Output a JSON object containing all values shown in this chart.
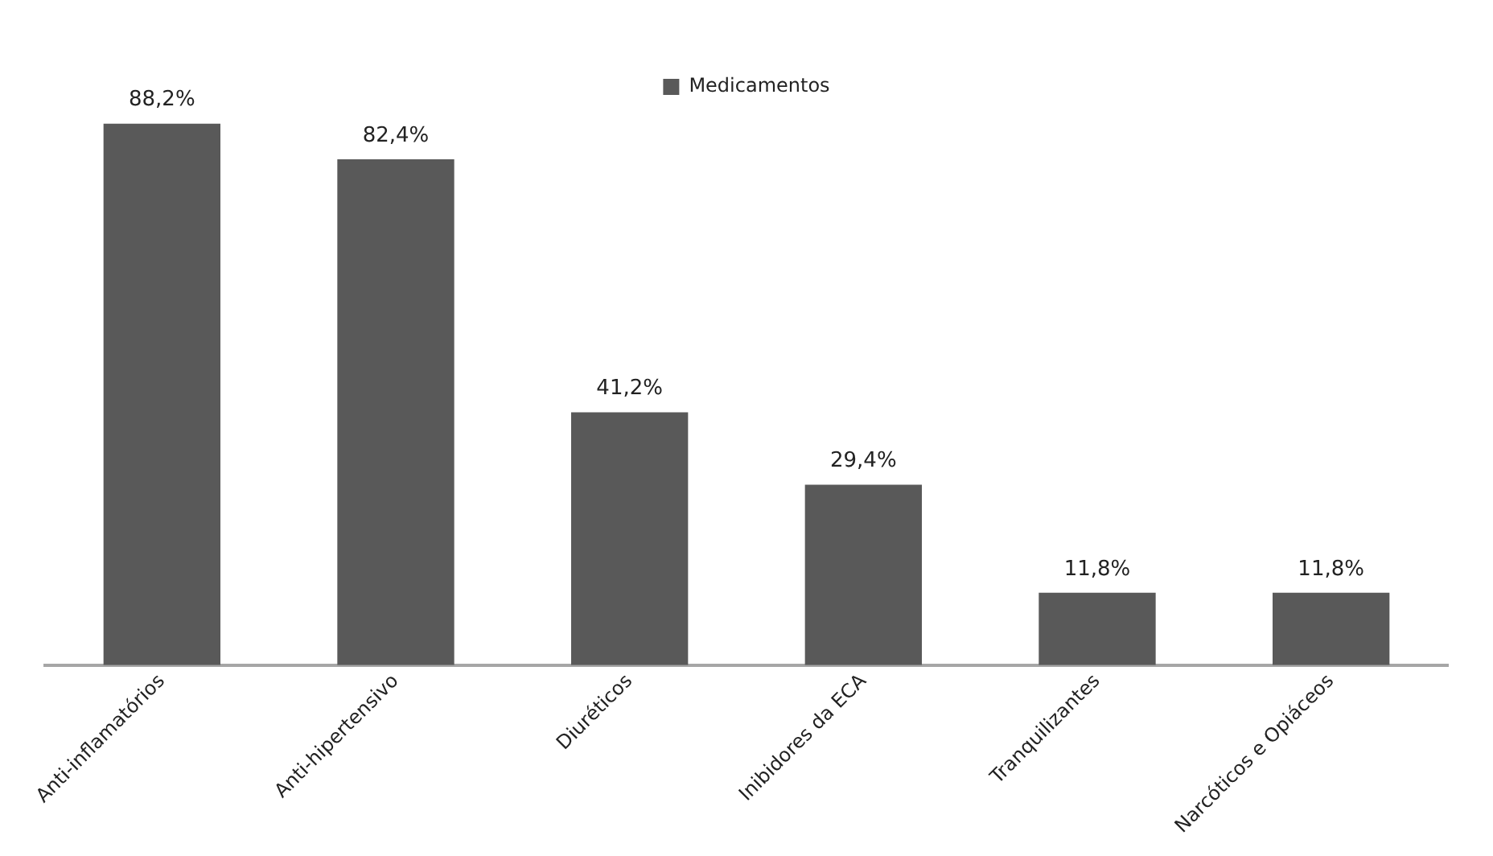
{
  "chart_data": {
    "type": "bar",
    "categories": [
      "Anti-inflamatórios",
      "Anti-hipertensivo",
      "Diuréticos",
      "Inibidores da ECA",
      "Tranquilizantes",
      "Narcóticos e Opiáceos"
    ],
    "series": [
      {
        "name": "Medicamentos",
        "color": "#595959",
        "values": [
          88.2,
          82.4,
          41.2,
          29.4,
          11.8,
          11.8
        ],
        "value_labels": [
          "88,2%",
          "82,4%",
          "41,2%",
          "29,4%",
          "11,8%",
          "11,8%"
        ]
      }
    ],
    "legend": "top",
    "grid": false,
    "tick_labels": "x"
  }
}
